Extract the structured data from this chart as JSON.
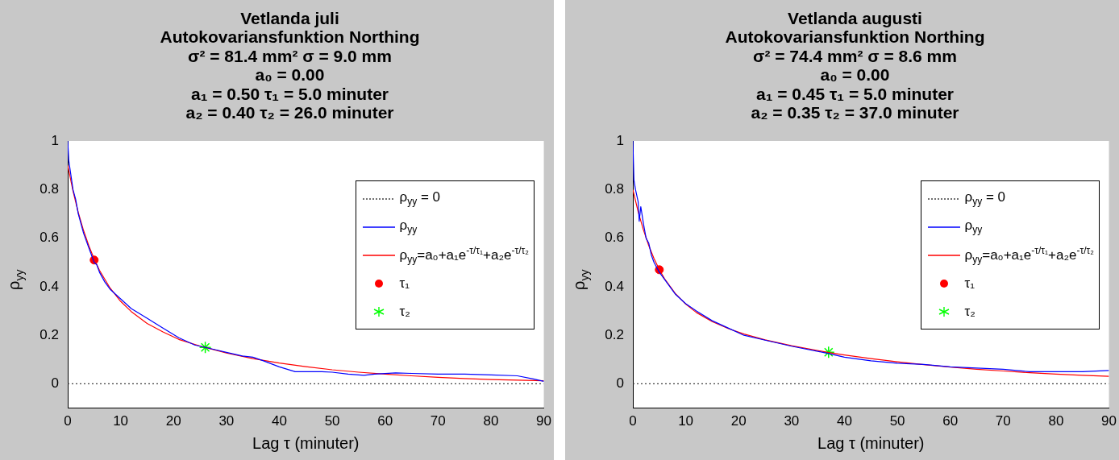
{
  "chart_data": [
    {
      "type": "line",
      "title": "Vetlanda juli\nAutokovariansfunktion Northing\nσ² = 81.4 mm² σ = 9.0 mm\na₀ = 0.00\na₁ = 0.50 τ₁ = 5.0 minuter\na₂ = 0.40 τ₂ = 26.0 minuter",
      "xlabel": "Lag τ (minuter)",
      "ylabel": "ρ$_{yy}$",
      "xlim": [
        0,
        90
      ],
      "xticks": [
        0,
        10,
        20,
        30,
        40,
        50,
        60,
        70,
        80,
        90
      ],
      "ylim": [
        -0.1,
        1
      ],
      "yticks": [
        0,
        0.2,
        0.4,
        0.6,
        0.8,
        1
      ],
      "grid": false,
      "legend": "top right",
      "series": [
        {
          "name": "ρ$_{yy}$ = 0",
          "type": "line",
          "color": "#404040",
          "line_style": "dotted",
          "marker": "none",
          "x": [
            0,
            90
          ],
          "values": [
            0,
            0
          ]
        },
        {
          "name": "ρ$_{yy}$",
          "type": "line",
          "color": "#0000ff",
          "line_style": "solid",
          "marker": "none",
          "x": [
            0,
            0.2,
            1,
            1.5,
            2,
            3,
            4,
            5,
            5.5,
            6,
            7,
            8,
            10,
            12,
            15,
            18,
            21,
            24,
            26,
            28,
            30,
            33,
            35,
            37,
            40,
            43,
            45,
            48,
            50,
            53,
            56,
            58,
            62,
            65,
            70,
            75,
            80,
            85,
            88,
            90
          ],
          "values": [
            1,
            0.92,
            0.8,
            0.76,
            0.7,
            0.62,
            0.56,
            0.5,
            0.49,
            0.46,
            0.42,
            0.39,
            0.35,
            0.31,
            0.27,
            0.23,
            0.19,
            0.16,
            0.15,
            0.14,
            0.13,
            0.115,
            0.11,
            0.095,
            0.07,
            0.05,
            0.05,
            0.05,
            0.048,
            0.04,
            0.035,
            0.04,
            0.045,
            0.043,
            0.04,
            0.04,
            0.037,
            0.033,
            0.02,
            0.01
          ]
        },
        {
          "name": "ρ$_{yy}$=a₀+a₁e$^{-τ/τ₁}$+a₂e$^{-τ/τ₂}$",
          "type": "line",
          "color": "#ff0000",
          "line_style": "solid",
          "marker": "none",
          "x": [
            0,
            1,
            2,
            3,
            4,
            5,
            6,
            8,
            10,
            12,
            15,
            18,
            21,
            25,
            30,
            35,
            40,
            45,
            50,
            55,
            60,
            65,
            70,
            75,
            80,
            85,
            90
          ],
          "values": [
            0.9,
            0.794,
            0.705,
            0.631,
            0.568,
            0.514,
            0.468,
            0.395,
            0.34,
            0.298,
            0.249,
            0.214,
            0.183,
            0.156,
            0.127,
            0.104,
            0.086,
            0.071,
            0.058,
            0.048,
            0.04,
            0.033,
            0.027,
            0.022,
            0.018,
            0.015,
            0.013
          ]
        },
        {
          "name": "τ₁",
          "type": "scatter",
          "color": "#ff0000",
          "marker": "circle",
          "x": [
            5
          ],
          "values": [
            0.51
          ]
        },
        {
          "name": "τ₂",
          "type": "scatter",
          "color": "#00ff00",
          "marker": "cross",
          "x": [
            26
          ],
          "values": [
            0.15
          ]
        }
      ]
    },
    {
      "type": "line",
      "title": "Vetlanda augusti\nAutokovariansfunktion Northing\nσ² = 74.4 mm² σ = 8.6 mm\na₀ = 0.00\na₁ = 0.45 τ₁ = 5.0 minuter\na₂ = 0.35 τ₂ = 37.0 minuter",
      "xlabel": "Lag τ (minuter)",
      "ylabel": "ρ$_{yy}$",
      "xlim": [
        0,
        90
      ],
      "xticks": [
        0,
        10,
        20,
        30,
        40,
        50,
        60,
        70,
        80,
        90
      ],
      "ylim": [
        -0.1,
        1
      ],
      "yticks": [
        0,
        0.2,
        0.4,
        0.6,
        0.8,
        1
      ],
      "grid": false,
      "legend": "top right",
      "series": [
        {
          "name": "ρ$_{yy}$ = 0",
          "type": "line",
          "color": "#404040",
          "line_style": "dotted",
          "marker": "none",
          "x": [
            0,
            90
          ],
          "values": [
            0,
            0
          ]
        },
        {
          "name": "ρ$_{yy}$",
          "type": "line",
          "color": "#0000ff",
          "line_style": "solid",
          "marker": "none",
          "x": [
            0,
            0.2,
            0.5,
            1,
            1.2,
            1.5,
            2,
            2.5,
            3,
            3.5,
            4,
            5,
            6,
            8,
            10,
            12,
            15,
            18,
            21,
            25,
            30,
            37,
            40,
            45,
            50,
            55,
            60,
            65,
            70,
            75,
            80,
            85,
            90
          ],
          "values": [
            1,
            0.84,
            0.8,
            0.75,
            0.67,
            0.73,
            0.66,
            0.6,
            0.58,
            0.53,
            0.5,
            0.46,
            0.43,
            0.37,
            0.33,
            0.3,
            0.26,
            0.23,
            0.2,
            0.18,
            0.155,
            0.125,
            0.11,
            0.095,
            0.085,
            0.08,
            0.07,
            0.065,
            0.06,
            0.05,
            0.05,
            0.05,
            0.055
          ]
        },
        {
          "name": "ρ$_{yy}$=a₀+a₁e$^{-τ/τ₁}$+a₂e$^{-τ/τ₂}$",
          "type": "line",
          "color": "#ff0000",
          "line_style": "solid",
          "marker": "none",
          "x": [
            0,
            1,
            2,
            3,
            4,
            5,
            6,
            8,
            10,
            12,
            15,
            18,
            21,
            25,
            30,
            37,
            40,
            45,
            50,
            55,
            60,
            65,
            70,
            75,
            80,
            85,
            90
          ],
          "values": [
            0.8,
            0.709,
            0.634,
            0.57,
            0.516,
            0.471,
            0.433,
            0.373,
            0.328,
            0.294,
            0.256,
            0.228,
            0.205,
            0.181,
            0.157,
            0.129,
            0.119,
            0.104,
            0.091,
            0.079,
            0.069,
            0.06,
            0.053,
            0.046,
            0.04,
            0.035,
            0.031
          ]
        },
        {
          "name": "τ₁",
          "type": "scatter",
          "color": "#ff0000",
          "marker": "circle",
          "x": [
            5
          ],
          "values": [
            0.47
          ]
        },
        {
          "name": "τ₂",
          "type": "scatter",
          "color": "#00ff00",
          "marker": "cross",
          "x": [
            37
          ],
          "values": [
            0.13
          ]
        }
      ]
    }
  ]
}
